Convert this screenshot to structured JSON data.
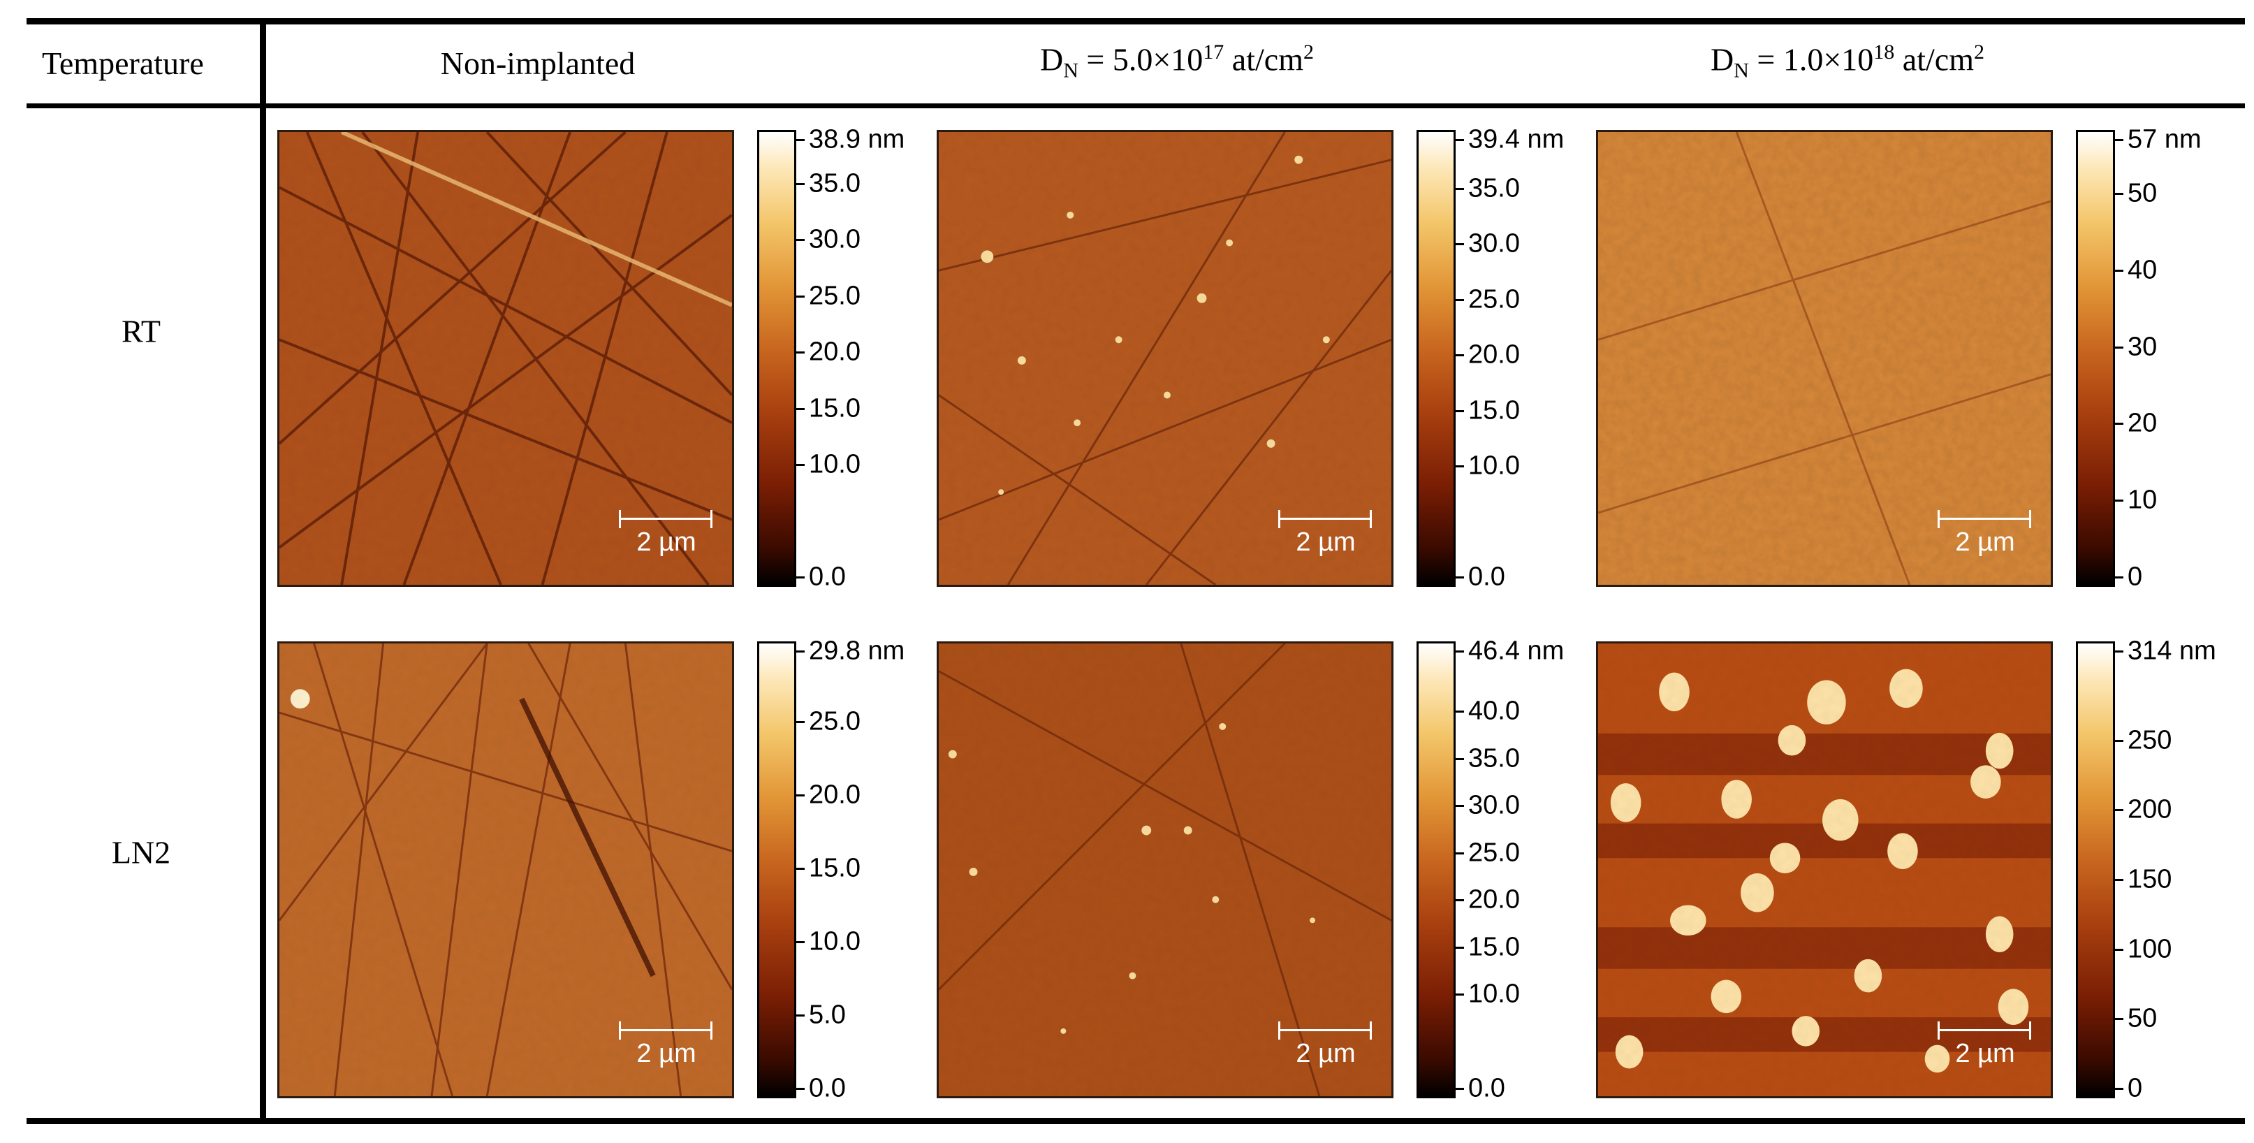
{
  "table": {
    "header": {
      "temperature": "Temperature",
      "col1": "Non-implanted",
      "col2": {
        "prefix": "D",
        "sub": "N",
        "mid": " = 5.0×10",
        "sup": "17",
        "suffix": " at/cm",
        "sup2": "2"
      },
      "col3": {
        "prefix": "D",
        "sub": "N",
        "mid": " = 1.0×10",
        "sup": "18",
        "suffix": " at/cm",
        "sup2": "2"
      }
    },
    "rows": [
      {
        "label": "RT",
        "images": [
          {
            "scale_bar": "2 µm",
            "colorbar": {
              "max": 38.9,
              "ticks": [
                "38.9 nm",
                "35.0",
                "30.0",
                "25.0",
                "20.0",
                "15.0",
                "10.0",
                "0.0"
              ],
              "tick_values": [
                38.9,
                35,
                30,
                25,
                20,
                15,
                10,
                0
              ]
            }
          },
          {
            "scale_bar": "2 µm",
            "colorbar": {
              "max": 39.4,
              "ticks": [
                "39.4 nm",
                "35.0",
                "30.0",
                "25.0",
                "20.0",
                "15.0",
                "10.0",
                "0.0"
              ],
              "tick_values": [
                39.4,
                35,
                30,
                25,
                20,
                15,
                10,
                0
              ]
            }
          },
          {
            "scale_bar": "2 µm",
            "colorbar": {
              "max": 57,
              "ticks": [
                "57 nm",
                "50",
                "40",
                "30",
                "20",
                "10",
                "0"
              ],
              "tick_values": [
                57,
                50,
                40,
                30,
                20,
                10,
                0
              ]
            }
          }
        ]
      },
      {
        "label": "LN2",
        "images": [
          {
            "scale_bar": "2 µm",
            "colorbar": {
              "max": 29.8,
              "ticks": [
                "29.8 nm",
                "25.0",
                "20.0",
                "15.0",
                "10.0",
                "5.0",
                "0.0"
              ],
              "tick_values": [
                29.8,
                25,
                20,
                15,
                10,
                5,
                0
              ]
            }
          },
          {
            "scale_bar": "2 µm",
            "colorbar": {
              "max": 46.4,
              "ticks": [
                "46.4 nm",
                "40.0",
                "35.0",
                "30.0",
                "25.0",
                "20.0",
                "15.0",
                "10.0",
                "0.0"
              ],
              "tick_values": [
                46.4,
                40,
                35,
                30,
                25,
                20,
                15,
                10,
                0
              ]
            }
          },
          {
            "scale_bar": "2 µm",
            "colorbar": {
              "max": 314,
              "ticks": [
                "314 nm",
                "250",
                "200",
                "150",
                "100",
                "50",
                "0"
              ],
              "tick_values": [
                314,
                250,
                200,
                150,
                100,
                50,
                0
              ]
            }
          }
        ]
      }
    ]
  },
  "colors": {
    "afhot_dark": "#000000",
    "afhot_mid": "#a8400f",
    "afhot_light": "#ffffff"
  }
}
